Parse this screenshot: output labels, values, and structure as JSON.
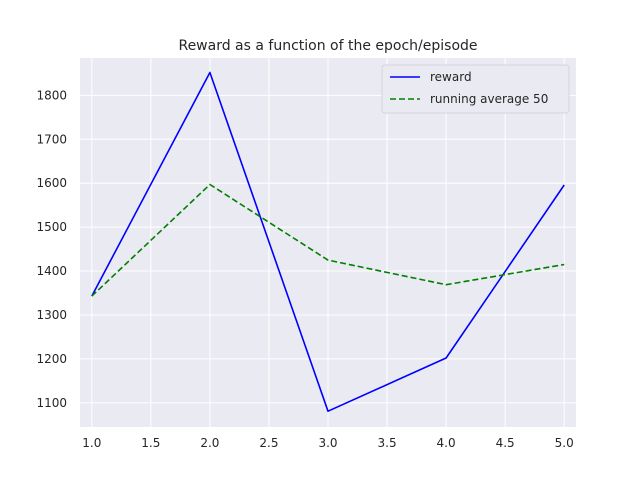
{
  "chart_data": {
    "type": "line",
    "title": "Reward as a function of the epoch/episode",
    "xlabel": "",
    "ylabel": "",
    "xlim": [
      0.9,
      5.1
    ],
    "ylim": [
      1045,
      1885
    ],
    "xticks": [
      1.0,
      1.5,
      2.0,
      2.5,
      3.0,
      3.5,
      4.0,
      4.5,
      5.0
    ],
    "xtick_labels": [
      "1.0",
      "1.5",
      "2.0",
      "2.5",
      "3.0",
      "3.5",
      "4.0",
      "4.5",
      "5.0"
    ],
    "yticks": [
      1100,
      1200,
      1300,
      1400,
      1500,
      1600,
      1700,
      1800
    ],
    "ytick_labels": [
      "1100",
      "1200",
      "1300",
      "1400",
      "1500",
      "1600",
      "1700",
      "1800"
    ],
    "grid": true,
    "legend_position": "top-right",
    "x": [
      1,
      2,
      3,
      4,
      5
    ],
    "series": [
      {
        "name": "reward",
        "values": [
          1343,
          1852,
          1081,
          1202,
          1596
        ],
        "color": "#0000ff",
        "style": "solid"
      },
      {
        "name": "running average 50",
        "values": [
          1343,
          1597,
          1425,
          1369,
          1415
        ],
        "color": "#008000",
        "style": "dashed"
      }
    ]
  },
  "colors": {
    "plot_background": "#eaeaf2",
    "grid": "#ffffff",
    "text": "#262626"
  }
}
